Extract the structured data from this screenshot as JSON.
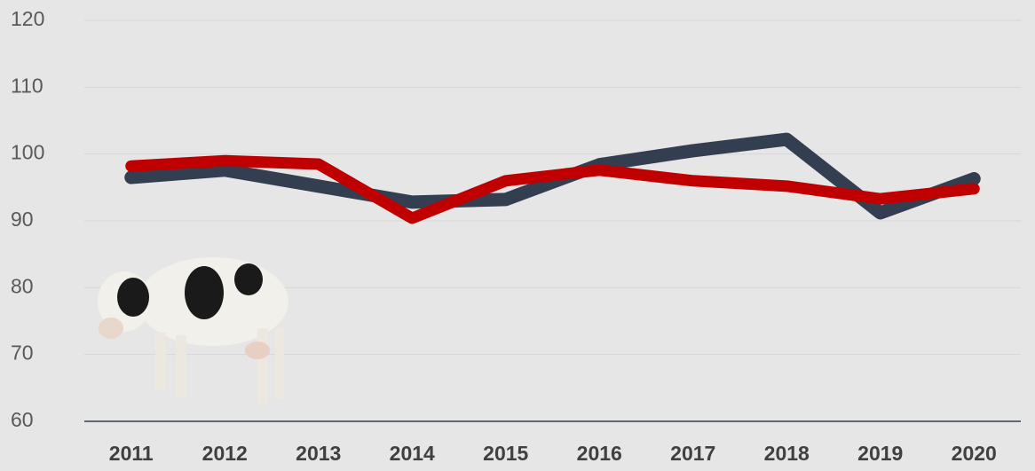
{
  "chart_data": {
    "type": "line",
    "categories": [
      "2011",
      "2012",
      "2013",
      "2014",
      "2015",
      "2016",
      "2017",
      "2018",
      "2019",
      "2020"
    ],
    "series": [
      {
        "color": "#333f50",
        "values": [
          96.5,
          97.6,
          95.2,
          92.8,
          93.2,
          98.4,
          100.5,
          102.2,
          91.2,
          96.3
        ]
      },
      {
        "color": "#c00000",
        "values": [
          98.2,
          99.0,
          98.5,
          90.4,
          96.0,
          97.6,
          96.0,
          95.2,
          93.3,
          94.8
        ]
      }
    ],
    "ylim": [
      60,
      120
    ],
    "yticks": [
      60,
      70,
      80,
      90,
      100,
      110,
      120
    ],
    "grid": true
  }
}
